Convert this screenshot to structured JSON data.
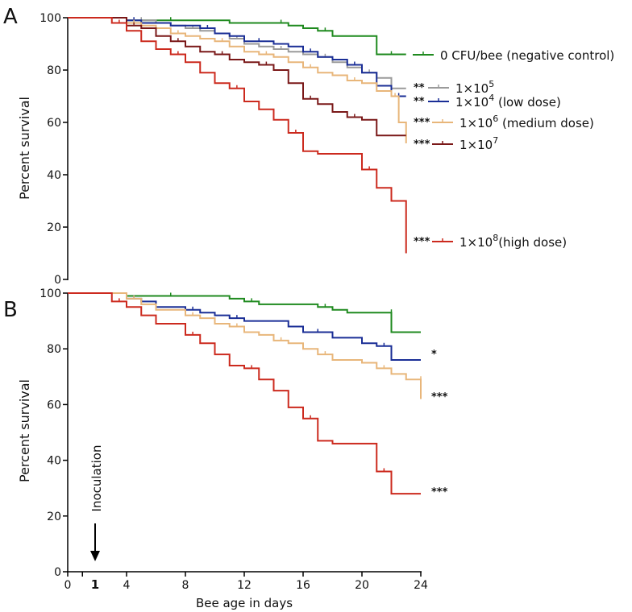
{
  "chart_data": [
    {
      "panel": "A",
      "type": "line",
      "step": true,
      "ylabel": "Percent survival",
      "xlabel": "",
      "xlim": [
        0,
        24
      ],
      "ylim": [
        0,
        100
      ],
      "yticks": [
        "0",
        "20",
        "40",
        "60",
        "80",
        "100"
      ],
      "series": [
        {
          "name": "0 CFU/bee (negative control)",
          "color": "#1f8a1f",
          "sig": "",
          "points": [
            [
              0,
              100
            ],
            [
              3,
              100
            ],
            [
              4,
              99
            ],
            [
              10,
              99
            ],
            [
              11,
              98
            ],
            [
              14,
              98
            ],
            [
              15,
              97
            ],
            [
              16,
              96
            ],
            [
              17,
              95
            ],
            [
              18,
              93
            ],
            [
              21,
              93
            ],
            [
              21,
              86
            ],
            [
              23,
              86
            ]
          ]
        },
        {
          "name": "1×10^5",
          "color": "#9a9a9a",
          "sig": "**",
          "points": [
            [
              0,
              100
            ],
            [
              3,
              100
            ],
            [
              4,
              99
            ],
            [
              6,
              98
            ],
            [
              7,
              97
            ],
            [
              8,
              96
            ],
            [
              9,
              95
            ],
            [
              10,
              94
            ],
            [
              11,
              92
            ],
            [
              12,
              90
            ],
            [
              13,
              89
            ],
            [
              14,
              88
            ],
            [
              15,
              87
            ],
            [
              16,
              86
            ],
            [
              17,
              85
            ],
            [
              18,
              83
            ],
            [
              19,
              81
            ],
            [
              20,
              79
            ],
            [
              21,
              77
            ],
            [
              22,
              73
            ],
            [
              23,
              73
            ]
          ]
        },
        {
          "name": "1×10^4 (low dose)",
          "color": "#1a2e96",
          "sig": "**",
          "points": [
            [
              0,
              100
            ],
            [
              3,
              100
            ],
            [
              4,
              99
            ],
            [
              5,
              98
            ],
            [
              7,
              97
            ],
            [
              9,
              96
            ],
            [
              10,
              94
            ],
            [
              11,
              93
            ],
            [
              12,
              91
            ],
            [
              14,
              90
            ],
            [
              15,
              89
            ],
            [
              16,
              87
            ],
            [
              17,
              85
            ],
            [
              18,
              84
            ],
            [
              19,
              82
            ],
            [
              20,
              79
            ],
            [
              21,
              74
            ],
            [
              22,
              70
            ],
            [
              23,
              70
            ]
          ]
        },
        {
          "name": "1×10^6 (medium dose)",
          "color": "#e8b67a",
          "sig": "***",
          "points": [
            [
              0,
              100
            ],
            [
              3,
              100
            ],
            [
              4,
              98
            ],
            [
              5,
              97
            ],
            [
              6,
              96
            ],
            [
              7,
              94
            ],
            [
              8,
              93
            ],
            [
              9,
              92
            ],
            [
              10,
              91
            ],
            [
              11,
              89
            ],
            [
              12,
              87
            ],
            [
              13,
              86
            ],
            [
              14,
              85
            ],
            [
              15,
              83
            ],
            [
              16,
              81
            ],
            [
              17,
              79
            ],
            [
              18,
              78
            ],
            [
              19,
              76
            ],
            [
              20,
              75
            ],
            [
              21,
              72
            ],
            [
              22,
              70
            ],
            [
              22.5,
              60
            ],
            [
              23,
              52
            ]
          ]
        },
        {
          "name": "1×10^7",
          "color": "#7a1818",
          "sig": "***",
          "points": [
            [
              0,
              100
            ],
            [
              3,
              100
            ],
            [
              4,
              97
            ],
            [
              5,
              96
            ],
            [
              6,
              93
            ],
            [
              7,
              91
            ],
            [
              8,
              89
            ],
            [
              9,
              87
            ],
            [
              10,
              86
            ],
            [
              11,
              84
            ],
            [
              12,
              83
            ],
            [
              13,
              82
            ],
            [
              14,
              80
            ],
            [
              15,
              75
            ],
            [
              16,
              69
            ],
            [
              17,
              67
            ],
            [
              18,
              64
            ],
            [
              19,
              62
            ],
            [
              20,
              61
            ],
            [
              21,
              55
            ],
            [
              23,
              55
            ]
          ]
        },
        {
          "name": "1×10^8 (high dose)",
          "color": "#cc2a1e",
          "sig": "***",
          "points": [
            [
              0,
              100
            ],
            [
              2,
              100
            ],
            [
              3,
              98
            ],
            [
              4,
              95
            ],
            [
              5,
              91
            ],
            [
              6,
              88
            ],
            [
              7,
              86
            ],
            [
              8,
              83
            ],
            [
              9,
              79
            ],
            [
              10,
              75
            ],
            [
              11,
              73
            ],
            [
              12,
              68
            ],
            [
              13,
              65
            ],
            [
              14,
              61
            ],
            [
              15,
              56
            ],
            [
              16,
              49
            ],
            [
              17,
              48
            ],
            [
              19,
              48
            ],
            [
              20,
              42
            ],
            [
              21,
              35
            ],
            [
              22,
              30
            ],
            [
              23,
              30
            ],
            [
              23,
              10
            ]
          ]
        }
      ]
    },
    {
      "panel": "B",
      "type": "line",
      "step": true,
      "ylabel": "Percent survival",
      "xlabel": "Bee age in days",
      "xlim": [
        0,
        24
      ],
      "ylim": [
        0,
        100
      ],
      "xticks": [
        "0",
        "4",
        "8",
        "12",
        "16",
        "20",
        "24"
      ],
      "yticks": [
        "0",
        "20",
        "40",
        "60",
        "80",
        "100"
      ],
      "inoculation": {
        "day": 1,
        "label": "Inoculation",
        "tick_label": "1"
      },
      "series": [
        {
          "name": "0 CFU/bee (negative control)",
          "color": "#1f8a1f",
          "sig": "",
          "points": [
            [
              0,
              100
            ],
            [
              3,
              100
            ],
            [
              4,
              99
            ],
            [
              10,
              99
            ],
            [
              11,
              98
            ],
            [
              12,
              97
            ],
            [
              13,
              96
            ],
            [
              16,
              96
            ],
            [
              17,
              95
            ],
            [
              18,
              94
            ],
            [
              19,
              93
            ],
            [
              22,
              93
            ],
            [
              22,
              86
            ],
            [
              24,
              86
            ]
          ]
        },
        {
          "name": "1×10^4 (low dose)",
          "color": "#1a2e96",
          "sig": "*",
          "points": [
            [
              0,
              100
            ],
            [
              3,
              100
            ],
            [
              4,
              98
            ],
            [
              5,
              97
            ],
            [
              6,
              95
            ],
            [
              8,
              94
            ],
            [
              9,
              93
            ],
            [
              10,
              92
            ],
            [
              11,
              91
            ],
            [
              12,
              90
            ],
            [
              15,
              88
            ],
            [
              16,
              86
            ],
            [
              18,
              84
            ],
            [
              20,
              82
            ],
            [
              21,
              81
            ],
            [
              22,
              76
            ],
            [
              24,
              76
            ]
          ]
        },
        {
          "name": "1×10^6 (medium dose)",
          "color": "#e8b67a",
          "sig": "***",
          "points": [
            [
              0,
              100
            ],
            [
              3,
              100
            ],
            [
              4,
              98
            ],
            [
              5,
              96
            ],
            [
              6,
              94
            ],
            [
              8,
              92
            ],
            [
              9,
              91
            ],
            [
              10,
              89
            ],
            [
              11,
              88
            ],
            [
              12,
              86
            ],
            [
              13,
              85
            ],
            [
              14,
              83
            ],
            [
              15,
              82
            ],
            [
              16,
              80
            ],
            [
              17,
              78
            ],
            [
              18,
              76
            ],
            [
              20,
              75
            ],
            [
              21,
              73
            ],
            [
              22,
              71
            ],
            [
              23,
              69
            ],
            [
              24,
              69
            ],
            [
              24,
              62
            ]
          ]
        },
        {
          "name": "1×10^8 (high dose)",
          "color": "#cc2a1e",
          "sig": "***",
          "points": [
            [
              0,
              100
            ],
            [
              2,
              100
            ],
            [
              3,
              97
            ],
            [
              4,
              95
            ],
            [
              5,
              92
            ],
            [
              6,
              89
            ],
            [
              8,
              85
            ],
            [
              9,
              82
            ],
            [
              10,
              78
            ],
            [
              11,
              74
            ],
            [
              12,
              73
            ],
            [
              13,
              69
            ],
            [
              14,
              65
            ],
            [
              15,
              59
            ],
            [
              16,
              55
            ],
            [
              17,
              47
            ],
            [
              18,
              46
            ],
            [
              20,
              46
            ],
            [
              21,
              36
            ],
            [
              22,
              28
            ],
            [
              24,
              28
            ]
          ]
        }
      ]
    }
  ],
  "panel_labels": {
    "a": "A",
    "b": "B"
  },
  "legend": [
    {
      "sig": "",
      "prefix": "0 CFU/bee (negative control)",
      "exp": "",
      "suffix": ""
    },
    {
      "sig": "**",
      "prefix": "1×10",
      "exp": "5",
      "suffix": ""
    },
    {
      "sig": "**",
      "prefix": "1×10",
      "exp": "4",
      "suffix": " (low dose)"
    },
    {
      "sig": "***",
      "prefix": "1×10",
      "exp": "6",
      "suffix": " (medium dose)"
    },
    {
      "sig": "***",
      "prefix": "1×10",
      "exp": "7",
      "suffix": ""
    },
    {
      "sig": "***",
      "prefix": "1×10",
      "exp": "8",
      "suffix": "(high dose)"
    }
  ]
}
